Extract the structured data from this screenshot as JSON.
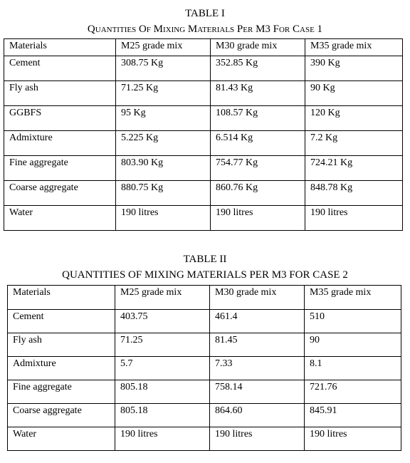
{
  "table1": {
    "label": "TABLE I",
    "title": "Quantities Of Mixing Materials Per M3 For Case 1",
    "headers": [
      "Materials",
      "M25 grade mix",
      "M30 grade mix",
      "M35 grade mix"
    ],
    "rows": [
      [
        "Cement",
        "308.75 Kg",
        "352.85 Kg",
        "390 Kg"
      ],
      [
        "Fly ash",
        "71.25 Kg",
        "81.43 Kg",
        "90 Kg"
      ],
      [
        "GGBFS",
        "95 Kg",
        "108.57 Kg",
        "120 Kg"
      ],
      [
        "Admixture",
        "5.225 Kg",
        "6.514 Kg",
        "7.2 Kg"
      ],
      [
        "Fine aggregate",
        "803.90 Kg",
        "754.77 Kg",
        "724.21 Kg"
      ],
      [
        "Coarse aggregate",
        "880.75 Kg",
        "860.76 Kg",
        "848.78 Kg"
      ],
      [
        "Water",
        "190 litres",
        "190 litres",
        "190 litres"
      ]
    ]
  },
  "table2": {
    "label": "TABLE II",
    "title": "QUANTITIES OF MIXING MATERIALS PER M3 FOR CASE 2",
    "headers": [
      "Materials",
      "M25 grade mix",
      "M30 grade mix",
      "M35 grade mix"
    ],
    "rows": [
      [
        "Cement",
        "403.75",
        "461.4",
        "510"
      ],
      [
        "Fly ash",
        "71.25",
        "81.45",
        "90"
      ],
      [
        "Admixture",
        "5.7",
        "7.33",
        "8.1"
      ],
      [
        "Fine aggregate",
        "805.18",
        "758.14",
        "721.76"
      ],
      [
        "Coarse aggregate",
        "805.18",
        "864.60",
        "845.91"
      ],
      [
        "Water",
        "190 litres",
        "190 litres",
        "190 litres"
      ]
    ]
  }
}
